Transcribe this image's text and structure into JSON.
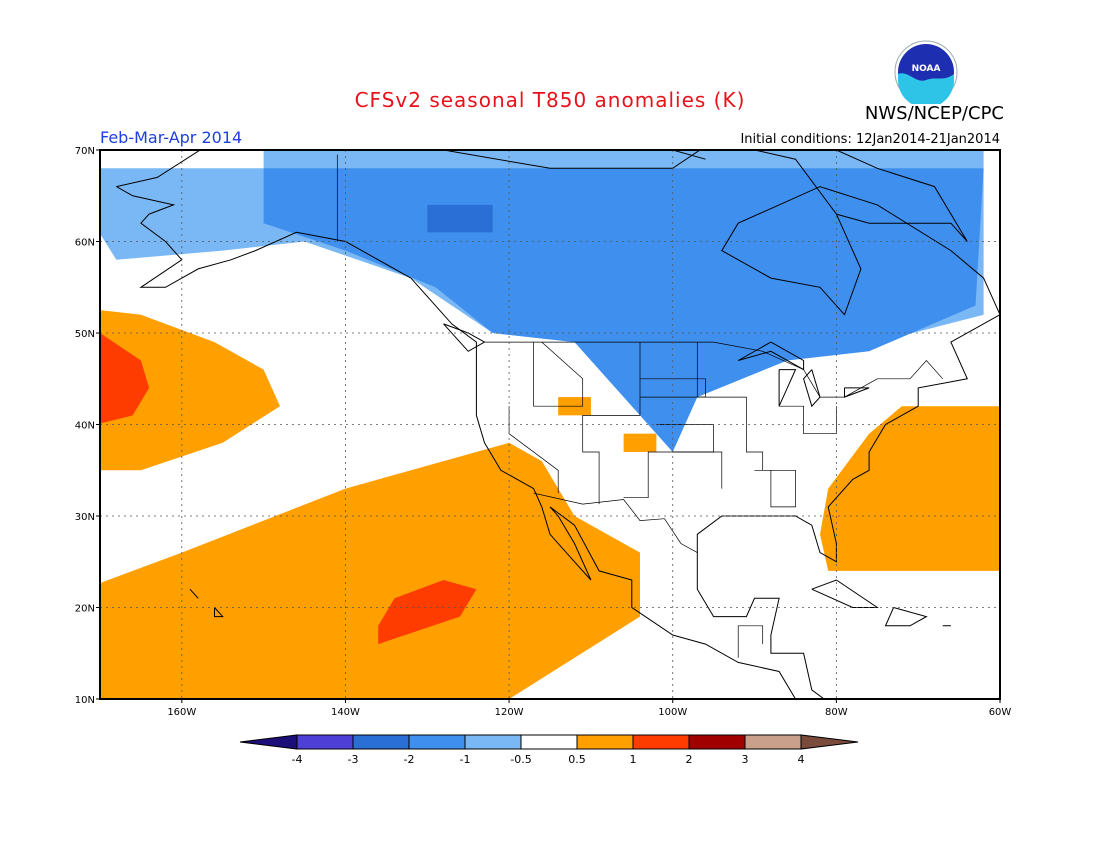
{
  "header": {
    "title": "CFSv2 seasonal T850 anomalies (K)",
    "agency": "NWS/NCEP/CPC",
    "season": "Feb-Mar-Apr 2014",
    "initial_conditions": "Initial conditions: 12Jan2014-21Jan2014",
    "logo_text": "NOAA"
  },
  "axes": {
    "lon_labels": [
      "160W",
      "140W",
      "120W",
      "100W",
      "80W",
      "60W"
    ],
    "lat_labels": [
      "10N",
      "20N",
      "30N",
      "40N",
      "50N",
      "60N",
      "70N"
    ]
  },
  "colorbar": {
    "labels": [
      "-4",
      "-3",
      "-2",
      "-1",
      "-0.5",
      "0.5",
      "1",
      "2",
      "3",
      "4"
    ],
    "colors": [
      "#1d0f7a",
      "#4e3fd6",
      "#2a6fd6",
      "#3f8fef",
      "#7ab8f5",
      "#ffffff",
      "#ff9f00",
      "#ff3c00",
      "#a00000",
      "#c8a08c",
      "#7a4a3a"
    ]
  },
  "anomaly_regions": [
    {
      "category": "cold_-1_to_-0.5",
      "color": "#7ab8f5",
      "lon_min": -168,
      "lon_max": -62,
      "lat_min": 48,
      "lat_max": 68
    },
    {
      "category": "cold_-2_to_-1",
      "color": "#3f8fef",
      "lon_min": -150,
      "lon_max": -64,
      "lat_min": 40,
      "lat_max": 68
    },
    {
      "category": "cold_-3_to_-2",
      "color": "#2a6fd6",
      "lon_min": -130,
      "lon_max": -122,
      "lat_min": 61,
      "lat_max": 64
    },
    {
      "category": "warm_0.5_to_1",
      "color": "#ff9f00",
      "lon_min": -175,
      "lon_max": -148,
      "lat_min": 35,
      "lat_max": 53
    },
    {
      "category": "warm_1_to_2",
      "color": "#ff3c00",
      "lon_min": -175,
      "lon_max": -164,
      "lat_min": 39,
      "lat_max": 51
    },
    {
      "category": "warm_0.5_to_1",
      "color": "#ff9f00",
      "lon_min": -175,
      "lon_max": -104,
      "lat_min": 10,
      "lat_max": 38
    },
    {
      "category": "warm_1_to_2",
      "color": "#ff3c00",
      "lon_min": -136,
      "lon_max": -124,
      "lat_min": 16,
      "lat_max": 23
    },
    {
      "category": "warm_0.5_to_1",
      "color": "#ff9f00",
      "lon_min": -81,
      "lon_max": -60,
      "lat_min": 24,
      "lat_max": 42
    }
  ]
}
